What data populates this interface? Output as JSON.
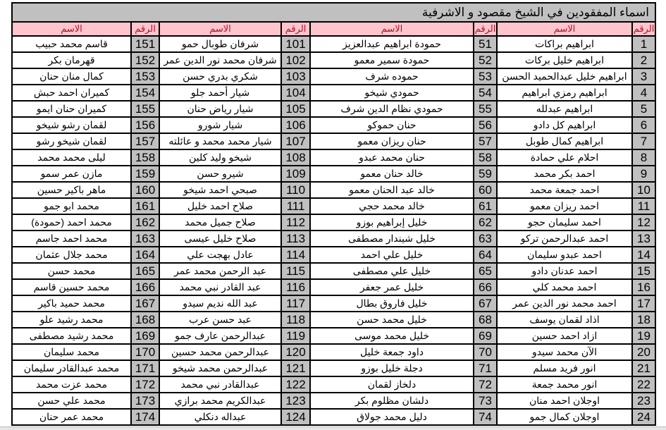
{
  "title": "اسماء المفقودين في الشيخ مقصود و الاشرفية",
  "headers": {
    "number": "الرقم",
    "name": "الاسم"
  },
  "colors": {
    "header_bg": "#ffc4cc",
    "header_text": "#b0102a",
    "number_bg": "#c0c0c0",
    "title_bg": "#c0c0c0"
  },
  "rows": [
    [
      "1",
      "ابراهيم براكات",
      "51",
      "حمودة ابراهيم عبدالعزيز",
      "101",
      "شرفان طوبال حمو",
      "151",
      "قاسم محمد حبيب"
    ],
    [
      "2",
      "ابراهيم خليل بركات",
      "52",
      "حمودة سمير معمو",
      "102",
      "شرفان محمد نور الدين عمر",
      "152",
      "قهرمان بكر"
    ],
    [
      "3",
      "ابراهيم خليل عبدالحميد الحسن",
      "53",
      "حموده شرف",
      "103",
      "شكري بدري حسن",
      "153",
      "كمال منان حنان"
    ],
    [
      "4",
      "ابراهيم رمزي ابراهيم",
      "54",
      "حمودي شيخو",
      "104",
      "شيار أحمد جلو",
      "154",
      "كميران احمد حبش"
    ],
    [
      "5",
      "ابراهيم عبدلله",
      "55",
      "حمودي نظام الدين شرف",
      "105",
      "شيار رياض حنان",
      "155",
      "كميران حنان ايمو"
    ],
    [
      "6",
      "ابراهيم كل دادو",
      "56",
      "حنان حموكو",
      "106",
      "شيار شورو",
      "156",
      "لقمان رشو شيخو"
    ],
    [
      "7",
      "ابراهيم كمال طوبل",
      "57",
      "حنان ريزان معمو",
      "107",
      "شيار محمد محمد و عائلته",
      "157",
      "لقمان شيخو رشو"
    ],
    [
      "8",
      "احلام علي حمادة",
      "58",
      "حنان محمد عبدو",
      "108",
      "شيخو وليد كلين",
      "158",
      "ليلى محمد محمد"
    ],
    [
      "9",
      "احمد بكر محمد",
      "59",
      "خالد حنان معمو",
      "109",
      "شيرو حسن",
      "159",
      "مازن عمر سمو"
    ],
    [
      "10",
      "احمد جمعة محمد",
      "60",
      "خالد عبد الحنان معمو",
      "110",
      "صبحي احمد شيخو",
      "160",
      "ماهر باكير حسين"
    ],
    [
      "11",
      "احمد ريزان معمو",
      "61",
      "خالد محمد حجي",
      "111",
      "صلاح احمد خليل",
      "161",
      "محمد ابو جمو"
    ],
    [
      "12",
      "احمد سليمان حجو",
      "62",
      "خليل إبراهيم بوزو",
      "112",
      "صلاح جميل محمد",
      "162",
      "محمد احمد (حمودة)"
    ],
    [
      "13",
      "احمد عبدالرحمن تركو",
      "63",
      "خليل شيندار مصطفى",
      "113",
      "صلاح خليل عيسى",
      "163",
      "محمد احمد جاسم"
    ],
    [
      "14",
      "احمد عبدو سليمان",
      "64",
      "خليل علي احمد",
      "114",
      "عادل بهجت علي",
      "164",
      "محمد جلال عثمان"
    ],
    [
      "15",
      "احمد عدنان دادو",
      "65",
      "خليل علي مصطفى",
      "115",
      "عبد الرحمن محمد عمر",
      "165",
      "محمد حسن"
    ],
    [
      "16",
      "احمد محمد كلي",
      "66",
      "خليل عمر جعفر",
      "116",
      "عبد القادر نبي محمد",
      "166",
      "محمد حسين قاسم"
    ],
    [
      "17",
      "احمد محمد نور الدين عمر",
      "67",
      "خليل فاروق بطال",
      "117",
      "عبد الله نديم سيدو",
      "167",
      "محمد حميد باكير"
    ],
    [
      "18",
      "اذاد لقمان يوسف",
      "68",
      "خليل محمد حسن",
      "118",
      "عبد حسن عرب",
      "168",
      "محمد رشيد علو"
    ],
    [
      "19",
      "ازاد احمد حسين",
      "69",
      "خليل محمد موسى",
      "119",
      "عبدالرحمن عارف جمو",
      "169",
      "محمد رشيد مصطفى"
    ],
    [
      "20",
      "الآن محمد سيدو",
      "70",
      "داود جمعة خليل",
      "120",
      "عبدالرحمن محمد حسين",
      "170",
      "محمد سليمان"
    ],
    [
      "21",
      "انور فريد مسلم",
      "71",
      "دجلة خليل بوزو",
      "121",
      "عبدالرحمن محمد شيخو",
      "171",
      "محمد عبدالقادر سليمان"
    ],
    [
      "22",
      "انور محمد جمعة",
      "72",
      "دلخاز لقمان",
      "122",
      "عبدالقادر نبي محمد",
      "172",
      "محمد عزت محمد"
    ],
    [
      "23",
      "اوجلان احمد منان",
      "73",
      "دلشان مظلوم بكر",
      "123",
      "عبدالكريم محمد برازي",
      "173",
      "محمد علي حسن"
    ],
    [
      "24",
      "اوجلان كمال جمو",
      "74",
      "دليل محمد جولاق",
      "124",
      "عبداله دنكلي",
      "174",
      "محمد عمر حنان"
    ]
  ]
}
